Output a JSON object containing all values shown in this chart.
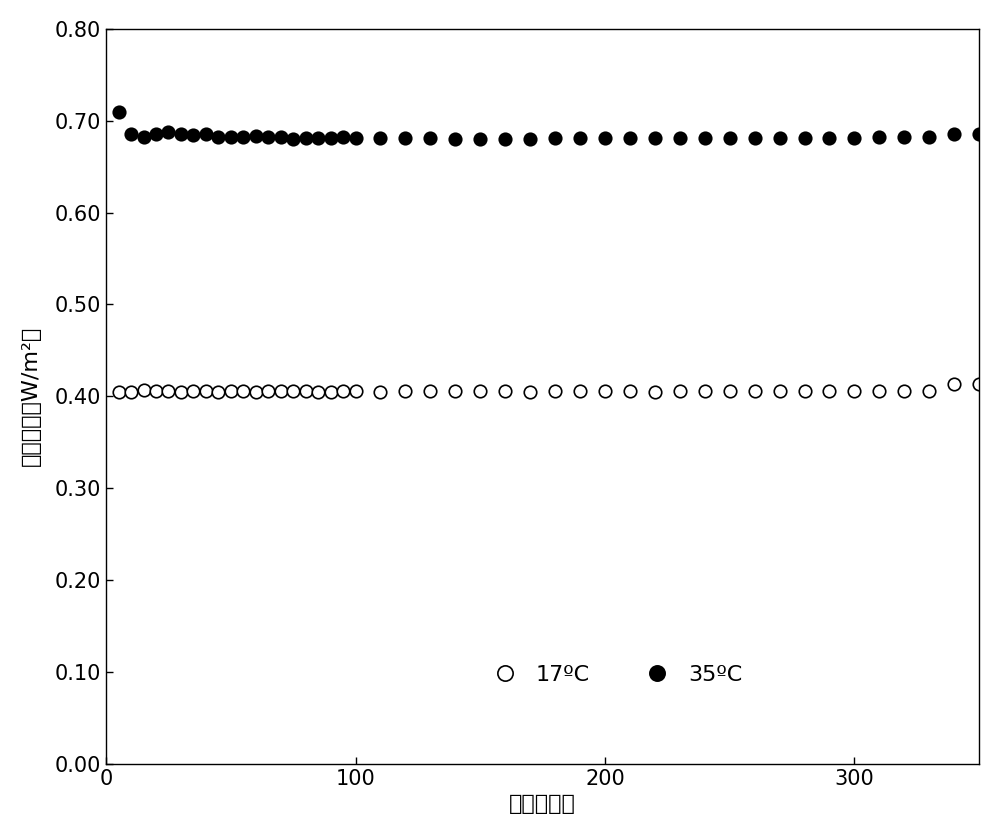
{
  "title": "",
  "xlabel": "时间（秒）",
  "ylabel": "功率密度（W/m²）",
  "xlim": [
    0,
    350
  ],
  "ylim": [
    0.0,
    0.8
  ],
  "xticks": [
    0,
    100,
    200,
    300
  ],
  "yticks": [
    0.0,
    0.1,
    0.2,
    0.3,
    0.4,
    0.5,
    0.6,
    0.7,
    0.8
  ],
  "series1_label": "17ºC",
  "series2_label": "35ºC",
  "background_color": "#ffffff",
  "series1_x": [
    5,
    10,
    15,
    20,
    25,
    30,
    35,
    40,
    45,
    50,
    55,
    60,
    65,
    70,
    75,
    80,
    85,
    90,
    95,
    100,
    110,
    120,
    130,
    140,
    150,
    160,
    170,
    180,
    190,
    200,
    210,
    220,
    230,
    240,
    250,
    260,
    270,
    280,
    290,
    300,
    310,
    320,
    330,
    340,
    350
  ],
  "series1_y": [
    0.405,
    0.405,
    0.407,
    0.406,
    0.406,
    0.405,
    0.406,
    0.406,
    0.405,
    0.406,
    0.406,
    0.405,
    0.406,
    0.406,
    0.406,
    0.406,
    0.405,
    0.405,
    0.406,
    0.406,
    0.405,
    0.406,
    0.406,
    0.406,
    0.406,
    0.406,
    0.405,
    0.406,
    0.406,
    0.406,
    0.406,
    0.405,
    0.406,
    0.406,
    0.406,
    0.406,
    0.406,
    0.406,
    0.406,
    0.406,
    0.406,
    0.406,
    0.406,
    0.413,
    0.413
  ],
  "series2_x": [
    5,
    10,
    15,
    20,
    25,
    30,
    35,
    40,
    45,
    50,
    55,
    60,
    65,
    70,
    75,
    80,
    85,
    90,
    95,
    100,
    110,
    120,
    130,
    140,
    150,
    160,
    170,
    180,
    190,
    200,
    210,
    220,
    230,
    240,
    250,
    260,
    270,
    280,
    290,
    300,
    310,
    320,
    330,
    340,
    350
  ],
  "series2_y": [
    0.71,
    0.686,
    0.682,
    0.685,
    0.688,
    0.686,
    0.684,
    0.685,
    0.682,
    0.682,
    0.682,
    0.683,
    0.682,
    0.682,
    0.68,
    0.681,
    0.681,
    0.681,
    0.682,
    0.681,
    0.681,
    0.681,
    0.681,
    0.68,
    0.68,
    0.68,
    0.68,
    0.681,
    0.681,
    0.681,
    0.681,
    0.681,
    0.681,
    0.681,
    0.681,
    0.681,
    0.681,
    0.681,
    0.681,
    0.681,
    0.682,
    0.682,
    0.682,
    0.686,
    0.686
  ],
  "markersize": 9,
  "font_size": 16,
  "tick_font_size": 15
}
